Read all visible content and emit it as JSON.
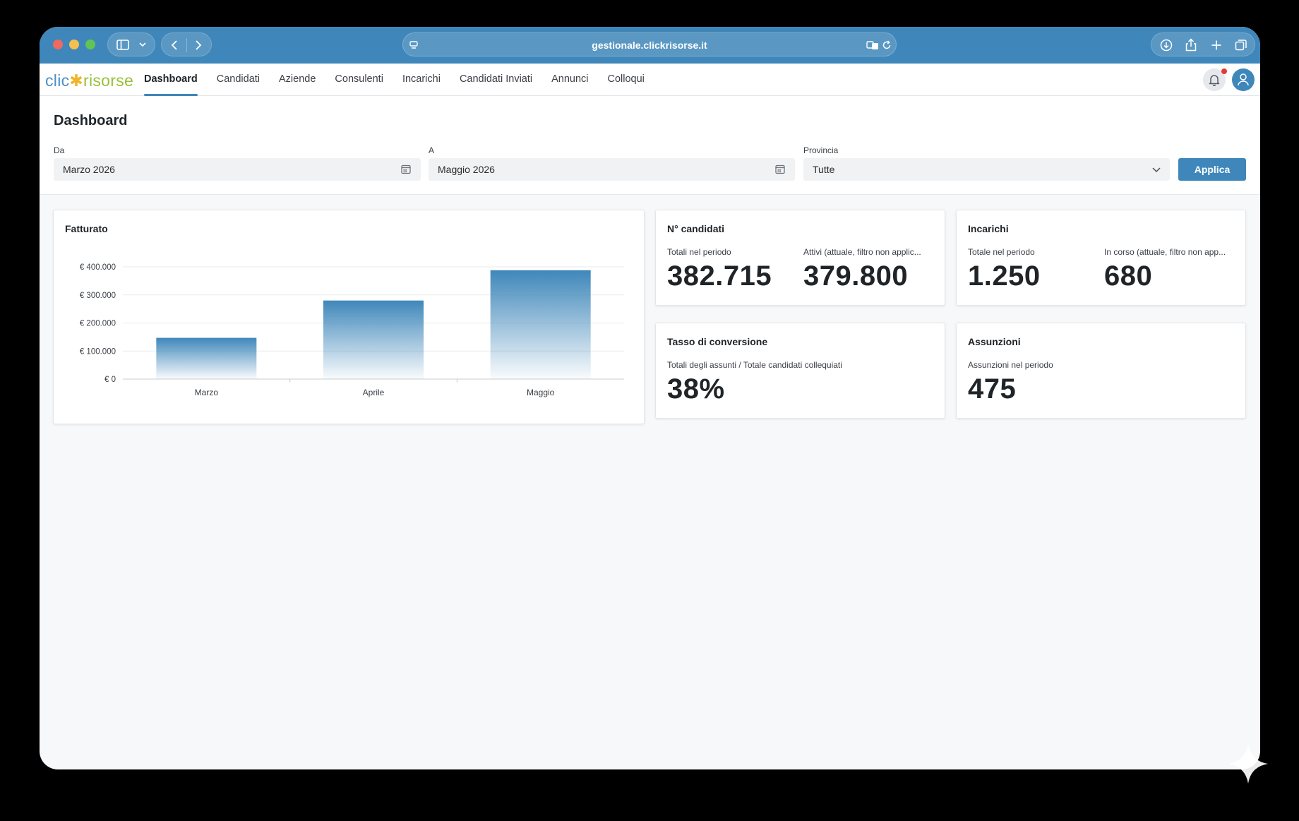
{
  "browser": {
    "url": "gestionale.clickrisorse.it"
  },
  "app": {
    "logo_part1": "clic",
    "logo_star": "✱",
    "logo_part2": "risorse",
    "nav": [
      {
        "label": "Dashboard",
        "active": true
      },
      {
        "label": "Candidati"
      },
      {
        "label": "Aziende"
      },
      {
        "label": "Consulenti"
      },
      {
        "label": "Incarichi"
      },
      {
        "label": "Candidati Inviati"
      },
      {
        "label": "Annunci"
      },
      {
        "label": "Colloqui"
      }
    ]
  },
  "page": {
    "title": "Dashboard"
  },
  "filters": {
    "from_label": "Da",
    "from_value": "Marzo 2026",
    "to_label": "A",
    "to_value": "Maggio 2026",
    "province_label": "Provincia",
    "province_value": "Tutte",
    "apply_label": "Applica"
  },
  "cards": {
    "fatturato": {
      "title": "Fatturato"
    },
    "candidati": {
      "title": "N° candidati",
      "label1": "Totali nel periodo",
      "value1": "382.715",
      "label2": "Attivi (attuale, filtro non applic...",
      "value2": "379.800"
    },
    "incarichi": {
      "title": "Incarichi",
      "label1": "Totale nel periodo",
      "value1": "1.250",
      "label2": "In corso (attuale, filtro non app...",
      "value2": "680"
    },
    "conversione": {
      "title": "Tasso di conversione",
      "label1": "Totali degli assunti / Totale candidati collequiati",
      "value1": "38%"
    },
    "assunzioni": {
      "title": "Assunzioni",
      "label1": "Assunzioni nel periodo",
      "value1": "475"
    }
  },
  "chart_data": {
    "type": "bar",
    "title": "Fatturato",
    "categories": [
      "Marzo",
      "Aprile",
      "Maggio"
    ],
    "values": [
      147000,
      280000,
      388000
    ],
    "ylim": [
      0,
      400000
    ],
    "yticks": [
      0,
      100000,
      200000,
      300000,
      400000
    ],
    "ytick_labels": [
      "€ 0",
      "€ 100.000",
      "€ 200.000",
      "€ 300.000",
      "€ 400.000"
    ],
    "bar_color": "#3f87ba",
    "grid": true,
    "xlabel": "",
    "ylabel": ""
  },
  "colors": {
    "accent": "#3f87ba",
    "notification": "#e53935"
  }
}
